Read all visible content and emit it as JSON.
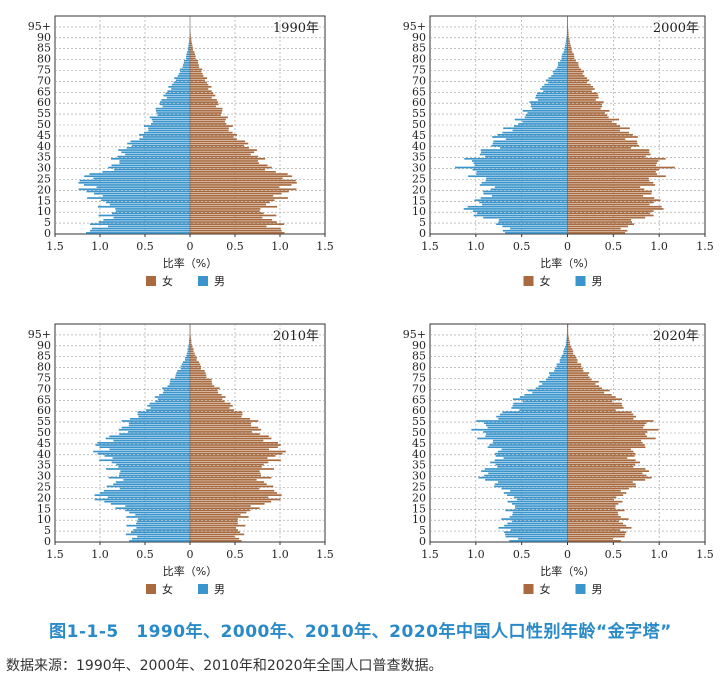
{
  "caption": "图1-1-5　1990年、2000年、2010年、2020年中国人口性别年龄“金字塔”",
  "source": "数据来源：1990年、2000年、2010年和2020年全国人口普查数据。",
  "colors": {
    "female": "#a86a3e",
    "male": "#3a95cc"
  },
  "chart_data": [
    {
      "type": "bar",
      "title": "1990年",
      "xlabel": "比率（%）",
      "ytick_labels": [
        "0",
        "5",
        "10",
        "15",
        "20",
        "25",
        "30",
        "35",
        "40",
        "45",
        "50",
        "55",
        "60",
        "65",
        "70",
        "75",
        "80",
        "85",
        "90",
        "95+"
      ],
      "xtick_labels": [
        "1.5",
        "1.0",
        "0.5",
        "0",
        "0.5",
        "1.0",
        "1.5"
      ],
      "xlim": [
        0,
        1.5
      ],
      "ages": [
        0,
        5,
        10,
        15,
        20,
        25,
        30,
        35,
        40,
        45,
        50,
        55,
        60,
        65,
        70,
        75,
        80,
        85,
        90,
        95
      ],
      "series": [
        {
          "name": "女",
          "values": [
            1.0,
            0.95,
            0.8,
            0.95,
            1.1,
            1.15,
            0.85,
            0.75,
            0.65,
            0.48,
            0.42,
            0.36,
            0.3,
            0.24,
            0.18,
            0.12,
            0.07,
            0.03,
            0.01,
            0.0
          ]
        },
        {
          "name": "男",
          "values": [
            1.1,
            1.0,
            0.85,
            1.0,
            1.15,
            1.2,
            0.85,
            0.8,
            0.7,
            0.52,
            0.45,
            0.38,
            0.32,
            0.25,
            0.17,
            0.1,
            0.05,
            0.02,
            0.005,
            0.0
          ]
        }
      ],
      "legend": [
        {
          "name": "女"
        },
        {
          "name": "男"
        }
      ]
    },
    {
      "type": "bar",
      "title": "2000年",
      "xlabel": "比率（%）",
      "ytick_labels": [
        "0",
        "5",
        "10",
        "15",
        "20",
        "25",
        "30",
        "35",
        "40",
        "45",
        "50",
        "55",
        "60",
        "65",
        "70",
        "75",
        "80",
        "85",
        "90",
        "95+"
      ],
      "xtick_labels": [
        "1.5",
        "1.0",
        "0.5",
        "0",
        "0.5",
        "1.0",
        "1.5"
      ],
      "xlim": [
        0,
        1.5
      ],
      "ages": [
        0,
        5,
        10,
        15,
        20,
        25,
        30,
        35,
        40,
        45,
        50,
        55,
        60,
        65,
        70,
        75,
        80,
        85,
        90,
        95
      ],
      "series": [
        {
          "name": "女",
          "values": [
            0.6,
            0.7,
            1.0,
            0.95,
            0.85,
            0.95,
            1.05,
            0.95,
            0.75,
            0.7,
            0.55,
            0.42,
            0.36,
            0.3,
            0.22,
            0.15,
            0.08,
            0.04,
            0.015,
            0.005
          ]
        },
        {
          "name": "男",
          "values": [
            0.65,
            0.75,
            1.1,
            0.95,
            0.85,
            0.95,
            1.1,
            1.0,
            0.8,
            0.75,
            0.55,
            0.45,
            0.38,
            0.3,
            0.22,
            0.13,
            0.07,
            0.03,
            0.01,
            0.003
          ]
        }
      ],
      "legend": [
        {
          "name": "女"
        },
        {
          "name": "男"
        }
      ]
    },
    {
      "type": "bar",
      "title": "2010年",
      "xlabel": "比率（%）",
      "ytick_labels": [
        "0",
        "5",
        "10",
        "15",
        "20",
        "25",
        "30",
        "35",
        "40",
        "45",
        "50",
        "55",
        "60",
        "65",
        "70",
        "75",
        "80",
        "85",
        "90",
        "95+"
      ],
      "xtick_labels": [
        "1.5",
        "1.0",
        "0.5",
        "0",
        "0.5",
        "1.0",
        "1.5"
      ],
      "xlim": [
        0,
        1.5
      ],
      "ages": [
        0,
        5,
        10,
        15,
        20,
        25,
        30,
        35,
        40,
        45,
        50,
        55,
        60,
        65,
        70,
        75,
        80,
        85,
        90,
        95
      ],
      "series": [
        {
          "name": "女",
          "values": [
            0.55,
            0.55,
            0.55,
            0.7,
            1.0,
            0.85,
            0.8,
            0.85,
            1.0,
            0.95,
            0.75,
            0.7,
            0.5,
            0.38,
            0.3,
            0.2,
            0.12,
            0.06,
            0.02,
            0.005
          ]
        },
        {
          "name": "男",
          "values": [
            0.65,
            0.65,
            0.6,
            0.75,
            1.05,
            0.85,
            0.8,
            0.85,
            1.0,
            1.0,
            0.75,
            0.7,
            0.5,
            0.38,
            0.28,
            0.18,
            0.1,
            0.04,
            0.015,
            0.003
          ]
        }
      ],
      "legend": [
        {
          "name": "女"
        },
        {
          "name": "男"
        }
      ]
    },
    {
      "type": "bar",
      "title": "2020年",
      "xlabel": "比率（%）",
      "ytick_labels": [
        "0",
        "5",
        "10",
        "15",
        "20",
        "25",
        "30",
        "35",
        "40",
        "45",
        "50",
        "55",
        "60",
        "65",
        "70",
        "75",
        "80",
        "85",
        "90",
        "95+"
      ],
      "xtick_labels": [
        "1.5",
        "1.0",
        "0.5",
        "0",
        "0.5",
        "1.0",
        "1.5"
      ],
      "xlim": [
        0,
        1.5
      ],
      "ages": [
        0,
        5,
        10,
        15,
        20,
        25,
        30,
        35,
        40,
        45,
        50,
        55,
        60,
        65,
        70,
        75,
        80,
        85,
        90,
        95
      ],
      "series": [
        {
          "name": "女",
          "values": [
            0.55,
            0.65,
            0.6,
            0.55,
            0.55,
            0.7,
            0.9,
            0.75,
            0.7,
            0.85,
            0.9,
            0.85,
            0.6,
            0.55,
            0.38,
            0.25,
            0.15,
            0.08,
            0.03,
            0.008
          ]
        },
        {
          "name": "男",
          "values": [
            0.6,
            0.7,
            0.65,
            0.6,
            0.6,
            0.75,
            0.95,
            0.8,
            0.75,
            0.85,
            0.95,
            0.9,
            0.6,
            0.55,
            0.35,
            0.22,
            0.12,
            0.06,
            0.02,
            0.005
          ]
        }
      ],
      "legend": [
        {
          "name": "女"
        },
        {
          "name": "男"
        }
      ]
    }
  ]
}
